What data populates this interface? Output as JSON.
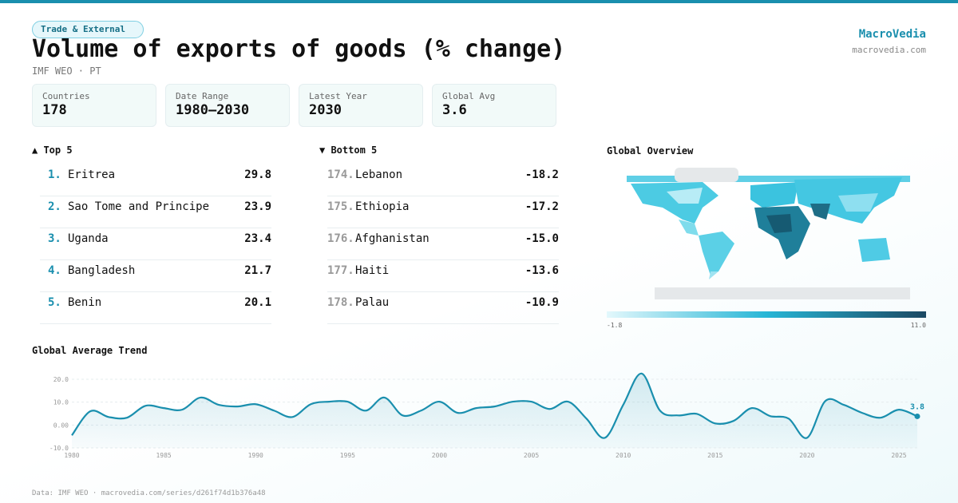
{
  "header": {
    "tag": "Trade & External",
    "title": "Volume of exports of goods (% change)",
    "subtitle": "IMF WEO · PT",
    "brand": "MacroVedia",
    "url": "macrovedia.com"
  },
  "stats": [
    {
      "label": "Countries",
      "value": "178"
    },
    {
      "label": "Date Range",
      "value": "1980–2030"
    },
    {
      "label": "Latest Year",
      "value": "2030"
    },
    {
      "label": "Global Avg",
      "value": "3.6"
    }
  ],
  "top": {
    "title": "▲ Top 5",
    "rows": [
      [
        "1.",
        "Eritrea",
        "29.8"
      ],
      [
        "2.",
        "Sao Tome and Principe",
        "23.9"
      ],
      [
        "3.",
        "Uganda",
        "23.4"
      ],
      [
        "4.",
        "Bangladesh",
        "21.7"
      ],
      [
        "5.",
        "Benin",
        "20.1"
      ]
    ]
  },
  "bottom": {
    "title": "▼ Bottom 5",
    "rows": [
      [
        "174.",
        "Lebanon",
        "-18.2"
      ],
      [
        "175.",
        "Ethiopia",
        "-17.2"
      ],
      [
        "176.",
        "Afghanistan",
        "-15.0"
      ],
      [
        "177.",
        "Haiti",
        "-13.6"
      ],
      [
        "178.",
        "Palau",
        "-10.9"
      ]
    ]
  },
  "map": {
    "title": "Global Overview",
    "scale_min": -1.8,
    "scale_max": {
      "value": 11,
      "label": "11.0"
    }
  },
  "chart_data": {
    "type": "line",
    "title": "Global Average Trend",
    "color": "#1a8fae",
    "x": [
      1980,
      1981,
      1982,
      1983,
      1984,
      1985,
      1986,
      1987,
      1988,
      1989,
      1990,
      1991,
      1992,
      1993,
      1994,
      1995,
      1996,
      1997,
      1998,
      1999,
      2000,
      2001,
      2002,
      2003,
      2004,
      2005,
      2006,
      2007,
      2008,
      2009,
      2010,
      2011,
      2012,
      2013,
      2014,
      2015,
      2016,
      2017,
      2018,
      2019,
      2020,
      2021,
      2022,
      2023,
      2024,
      2025,
      2026
    ],
    "values": [
      -4.5,
      6,
      3.5,
      3.2,
      8.4,
      7.4,
      6.7,
      12,
      8.8,
      8.1,
      9.1,
      6.3,
      3.5,
      9.1,
      10.2,
      10.2,
      6.3,
      12,
      4.2,
      6.3,
      10.2,
      5.3,
      7.4,
      8.1,
      10.2,
      10.2,
      7,
      10.2,
      2.8,
      -5.6,
      8.8,
      22.5,
      6.3,
      4.2,
      4.9,
      0.7,
      1.8,
      7.4,
      3.9,
      2.8,
      -5.6,
      10.5,
      8.8,
      5.3,
      3.2,
      6.7,
      3.8
    ],
    "xlim": [
      1980,
      2026
    ],
    "ylim": [
      -10,
      20
    ],
    "xticks": [
      1980,
      1985,
      1990,
      1995,
      2000,
      2005,
      2010,
      2015,
      2020,
      2025
    ],
    "yticks": [
      {
        "value": -10,
        "label": "-10.0"
      },
      {
        "value": 0,
        "label": "0.00"
      },
      {
        "value": 10,
        "label": "10.0"
      },
      {
        "value": 20,
        "label": "20.0"
      }
    ],
    "grid": true
  },
  "footer": "Data: IMF WEO · macrovedia.com/series/d261f74d1b376a48"
}
